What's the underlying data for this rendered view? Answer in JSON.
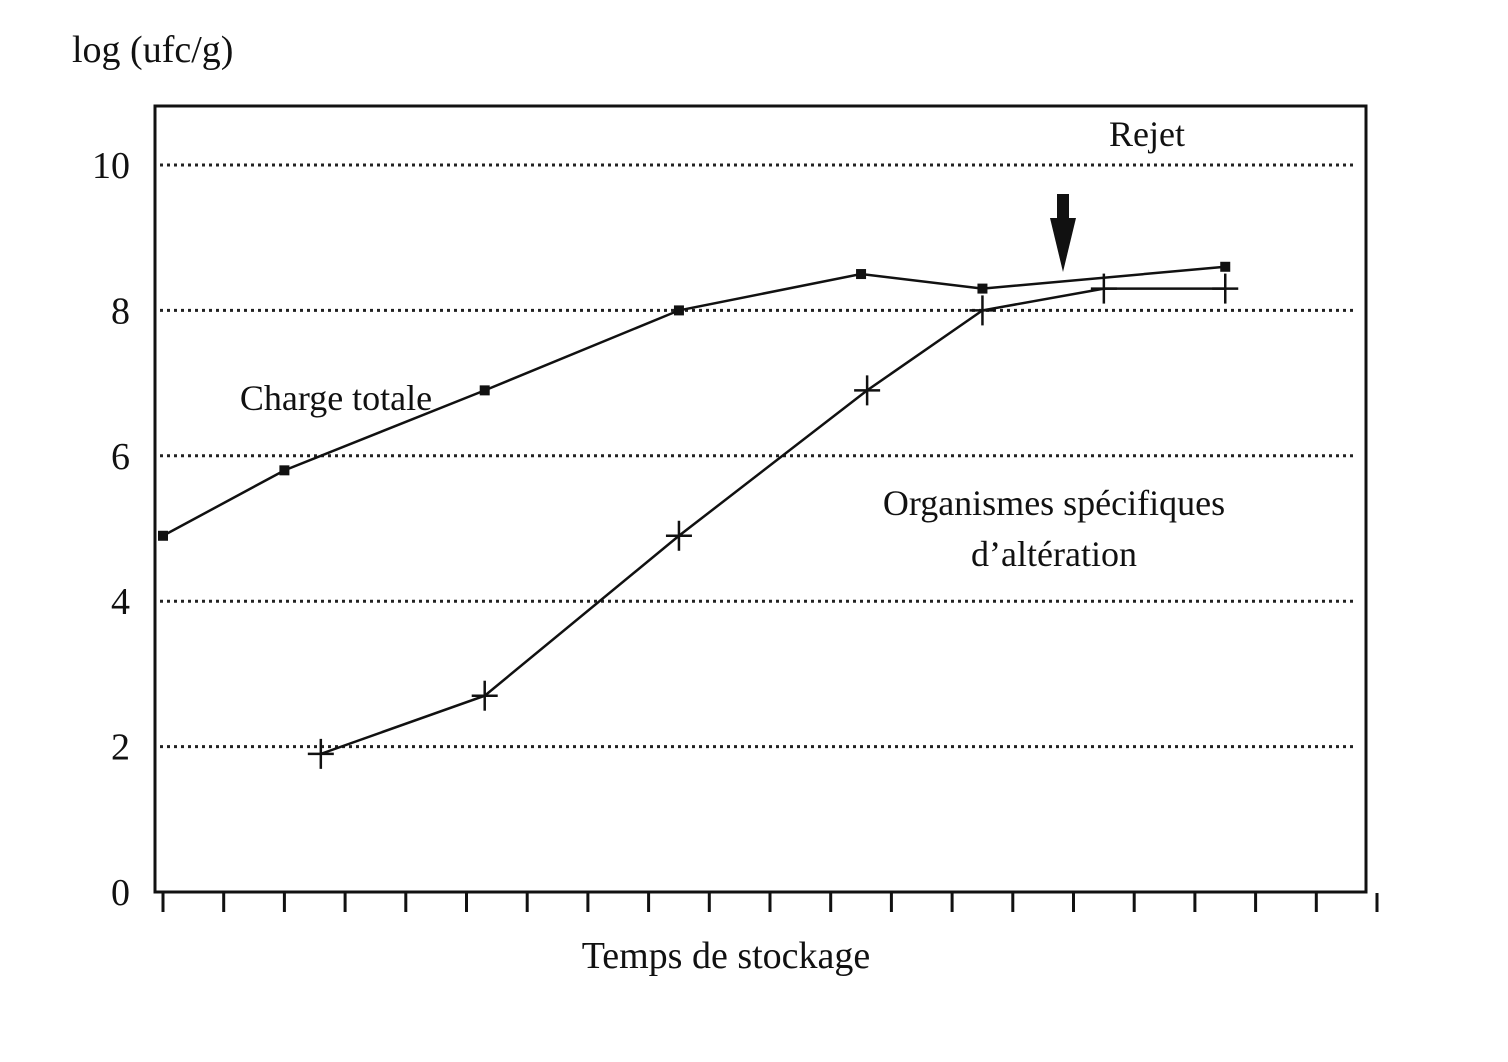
{
  "chart_data": {
    "type": "line",
    "ylabel": "log (ufc/g)",
    "xlabel": "Temps de stockage",
    "ylim": [
      0,
      10.8
    ],
    "y_ticks": [
      "0",
      "2",
      "4",
      "6",
      "8",
      "10"
    ],
    "x_tick_count": 21,
    "grid": "horizontal dotted lines at 2, 4, 6, 8, 10",
    "threshold_label": "Rejet",
    "threshold_value": 10,
    "series": [
      {
        "name": "Charge totale",
        "marker": "square",
        "x": [
          0,
          2,
          5.3,
          8.5,
          11.5,
          13.5,
          17.5
        ],
        "y": [
          4.9,
          5.8,
          6.9,
          8.0,
          8.5,
          8.3,
          8.6
        ]
      },
      {
        "name": "Organismes spécifiques d’altération",
        "marker": "plus",
        "x": [
          2.6,
          5.3,
          8.5,
          11.6,
          13.5,
          15.5,
          17.5
        ],
        "y": [
          1.9,
          2.7,
          4.9,
          6.9,
          8.0,
          8.3,
          8.3
        ]
      }
    ],
    "annotations": [
      "Charge totale",
      "Organismes spécifiques",
      "d’altération",
      "Rejet"
    ],
    "arrow_note": "downward arrow marking spoilage point"
  },
  "colors": {
    "ink": "#111111",
    "background": "#ffffff"
  }
}
